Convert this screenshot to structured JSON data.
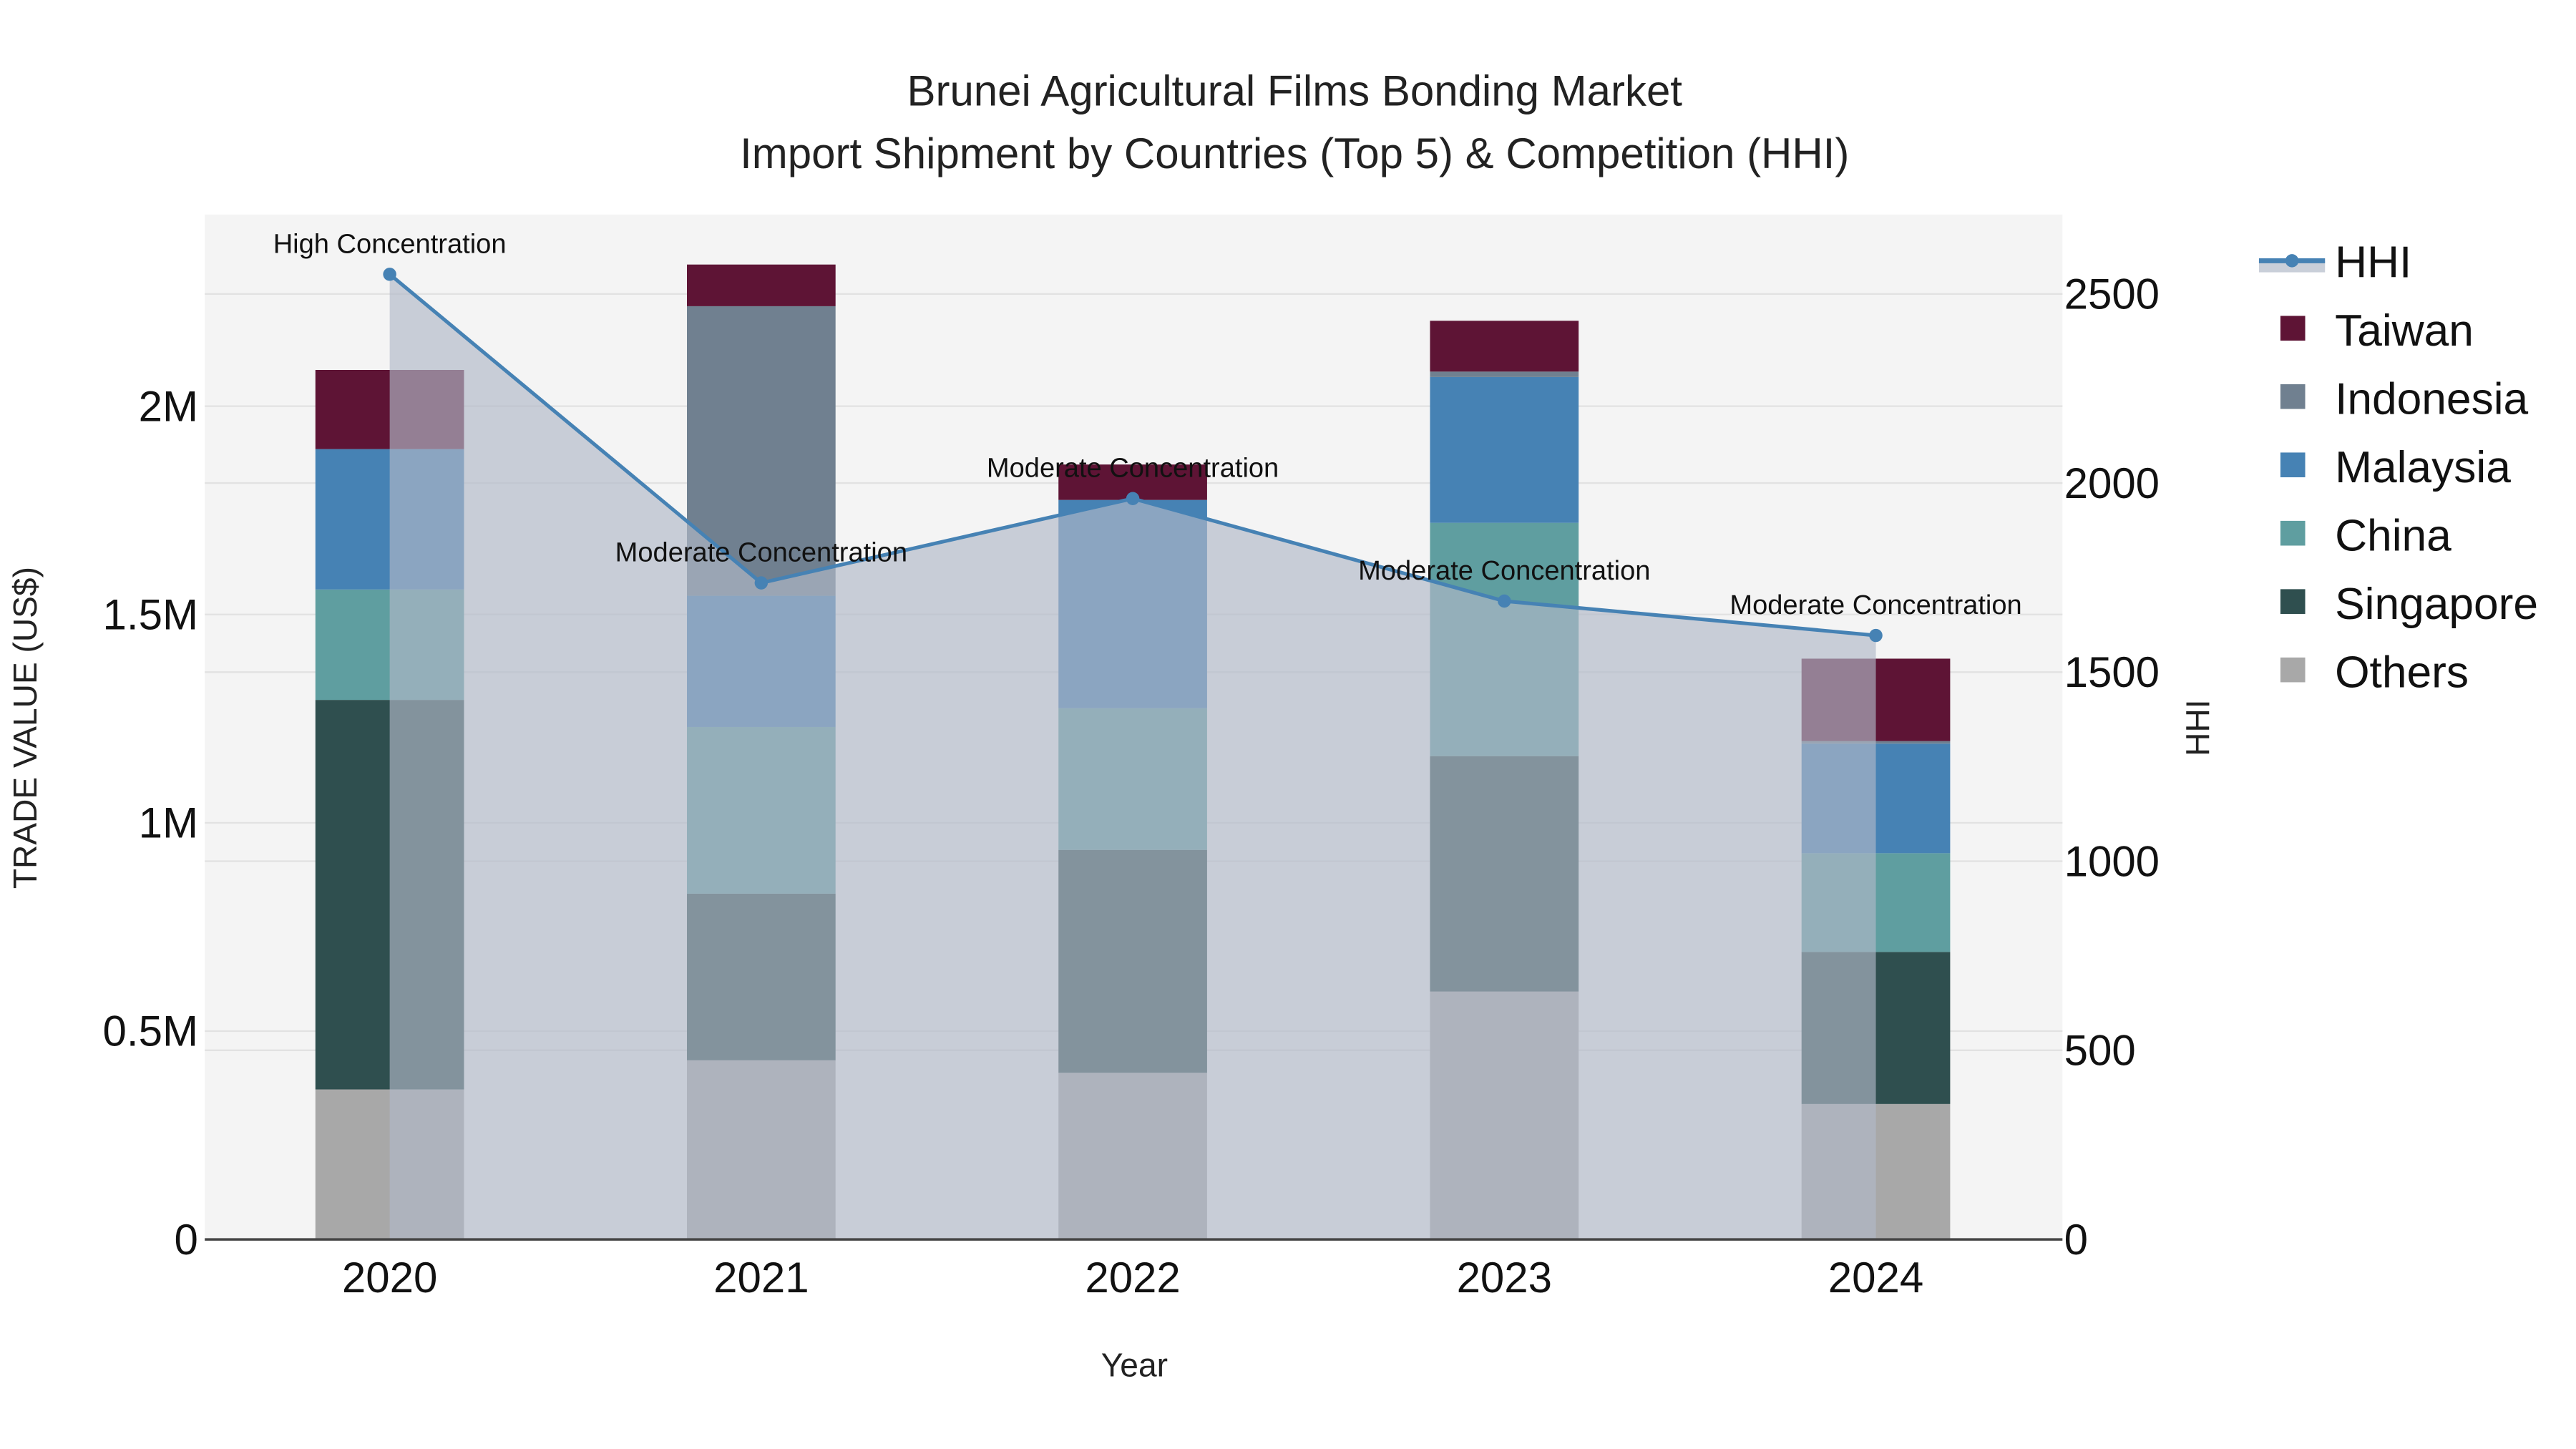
{
  "chart_data": {
    "type": "bar",
    "stacked": true,
    "title": "Brunei Agricultural Films Bonding Market",
    "subtitle": "Import Shipment by Countries (Top 5) & Competition (HHI)",
    "xlabel": "Year",
    "ylabel": "TRADE VALUE (US$)",
    "y2label": "HHI",
    "categories": [
      "2020",
      "2021",
      "2022",
      "2023",
      "2024"
    ],
    "ylim": [
      0,
      2460000
    ],
    "y_ticks": [
      0,
      500000,
      1000000,
      1500000,
      2000000
    ],
    "y_tick_labels": [
      "0",
      "0.5M",
      "1M",
      "1.5M",
      "2M"
    ],
    "y2lim": [
      0,
      2710
    ],
    "y2_ticks": [
      0,
      500,
      1000,
      1500,
      2000,
      2500
    ],
    "y2_tick_labels": [
      "0",
      "500",
      "1000",
      "1500",
      "2000",
      "2500"
    ],
    "grid": true,
    "legend_position": "right",
    "series": [
      {
        "name": "Others",
        "color": "#a8a8a8",
        "values": [
          360000,
          430000,
          400000,
          595000,
          325000
        ]
      },
      {
        "name": "Singapore",
        "color": "#2f4f4f",
        "values": [
          935000,
          400000,
          535000,
          565000,
          365000
        ]
      },
      {
        "name": "China",
        "color": "#5f9ea0",
        "values": [
          265000,
          400000,
          340000,
          560000,
          237000
        ]
      },
      {
        "name": "Malaysia",
        "color": "#4682b4",
        "values": [
          337000,
          315000,
          500000,
          350000,
          263000
        ]
      },
      {
        "name": "Indonesia",
        "color": "#708090",
        "values": [
          0,
          695000,
          0,
          13000,
          6000
        ]
      },
      {
        "name": "Taiwan",
        "color": "#5e1435",
        "values": [
          190000,
          100000,
          85000,
          122000,
          198000
        ]
      }
    ],
    "line_series": {
      "name": "HHI",
      "axis": "y2",
      "color": "#4682b4",
      "fill_color": "rgba(176,184,200,0.65)",
      "values": [
        2552,
        1736,
        1959,
        1688,
        1597
      ],
      "annotations": [
        "High Concentration",
        "Moderate Concentration",
        "Moderate Concentration",
        "Moderate Concentration",
        "Moderate Concentration"
      ]
    },
    "legend": [
      "HHI",
      "Taiwan",
      "Indonesia",
      "Malaysia",
      "China",
      "Singapore",
      "Others"
    ]
  }
}
